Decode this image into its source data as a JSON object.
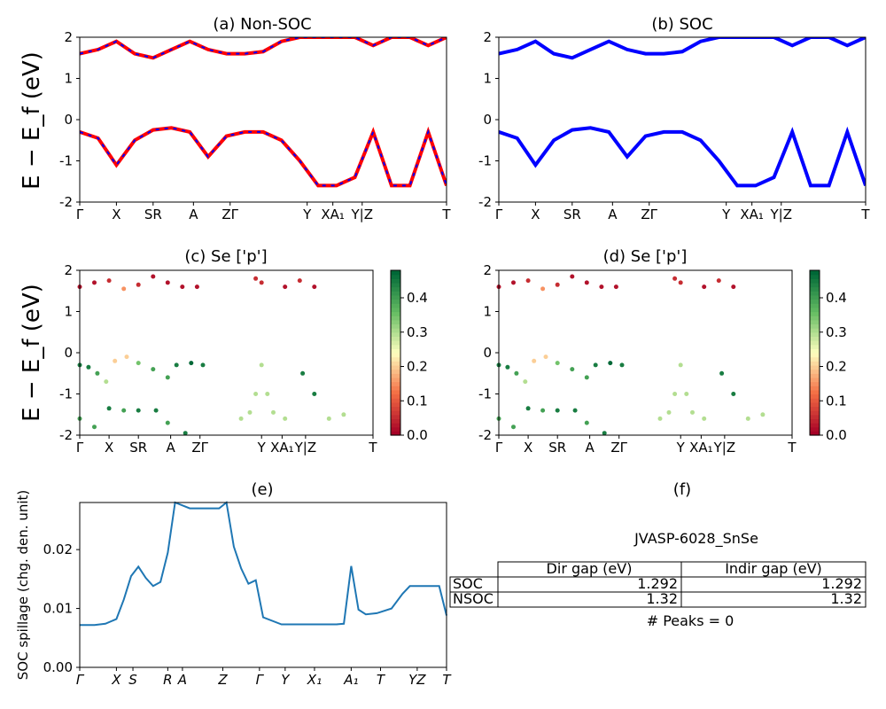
{
  "titles": {
    "a": "(a) Non-SOC",
    "b": "(b) SOC",
    "c": "(c)  Se ['p']",
    "d": "(d) Se ['p']",
    "e": "(e)",
    "f": "(f)"
  },
  "band_ylabel": "E − E_f (eV)",
  "spillage_ylabel": "SOC spillage (chg. den. unit)",
  "band_kpath_labels": [
    "Γ",
    "X",
    "SR",
    "A",
    "ZΓ",
    "Y",
    "XA₁",
    "Y|Z",
    "T"
  ],
  "spillage_kpath_labels": [
    "Γ",
    "X",
    "S",
    "R",
    "A",
    "Z",
    "Γ",
    "Y",
    "X₁",
    "A₁",
    "T",
    "YZ",
    "T"
  ],
  "colorbar_ticks": [
    "0.0",
    "0.1",
    "0.2",
    "0.3",
    "0.4"
  ],
  "colors": {
    "nonsoc_band": "#ff0000",
    "nonsoc_dash": "#0000ff",
    "soc_band": "#0000ff",
    "spillage_line": "#1f77b4"
  },
  "table": {
    "title": "JVASP-6028_SnSe",
    "col_headers": [
      "Dir gap (eV)",
      "Indir gap (eV)"
    ],
    "rows": [
      {
        "label": "SOC",
        "dir": "1.292",
        "indir": "1.292"
      },
      {
        "label": "NSOC",
        "dir": "1.32",
        "indir": "1.32"
      }
    ],
    "peaks": "# Peaks = 0"
  },
  "chart_data": [
    {
      "type": "line",
      "panel": "a",
      "title": "(a) Non-SOC",
      "ylabel": "E − E_f (eV)",
      "ylim": [
        -2,
        2
      ],
      "yticks": [
        -2,
        -1,
        0,
        1,
        2
      ],
      "xticks": [
        "Γ",
        "X",
        "SR",
        "A",
        "ZΓ",
        "Y",
        "XA₁",
        "Y|Z",
        "T"
      ],
      "series": [
        {
          "values_x": [
            0.0,
            0.05,
            0.1,
            0.15,
            0.2,
            0.25,
            0.3,
            0.35,
            0.4,
            0.45,
            0.5,
            0.55,
            0.6,
            0.65,
            0.7,
            0.75,
            0.8,
            0.85,
            0.9,
            0.95,
            1.0
          ],
          "values": [
            -0.3,
            -0.45,
            -1.1,
            -0.5,
            -0.25,
            -0.2,
            -0.3,
            -0.9,
            -0.4,
            -0.3,
            -0.3,
            -0.5,
            -1.0,
            -1.6,
            -1.6,
            -1.4,
            -0.3,
            -1.6,
            -1.6,
            -0.3,
            -1.6
          ]
        },
        {
          "values_x": [
            0.0,
            0.05,
            0.1,
            0.15,
            0.2,
            0.25,
            0.3,
            0.35,
            0.4,
            0.45,
            0.5,
            0.55,
            0.6,
            0.65,
            0.7,
            0.75,
            0.8,
            0.85,
            0.9,
            0.95,
            1.0
          ],
          "values": [
            1.6,
            1.7,
            1.9,
            1.6,
            1.5,
            1.7,
            1.9,
            1.7,
            1.6,
            1.6,
            1.65,
            1.9,
            2.0,
            2.0,
            2.0,
            2.0,
            1.8,
            2.0,
            2.0,
            1.8,
            2.0
          ]
        }
      ]
    },
    {
      "type": "line",
      "panel": "b",
      "title": "(b) SOC",
      "ylim": [
        -2,
        2
      ],
      "yticks": [
        -2,
        -1,
        0,
        1,
        2
      ],
      "xticks": [
        "Γ",
        "X",
        "SR",
        "A",
        "ZΓ",
        "Y",
        "XA₁",
        "Y|Z",
        "T"
      ],
      "series": [
        {
          "values_x": [
            0.0,
            0.05,
            0.1,
            0.15,
            0.2,
            0.25,
            0.3,
            0.35,
            0.4,
            0.45,
            0.5,
            0.55,
            0.6,
            0.65,
            0.7,
            0.75,
            0.8,
            0.85,
            0.9,
            0.95,
            1.0
          ],
          "values": [
            -0.3,
            -0.45,
            -1.1,
            -0.5,
            -0.25,
            -0.2,
            -0.3,
            -0.9,
            -0.4,
            -0.3,
            -0.3,
            -0.5,
            -1.0,
            -1.6,
            -1.6,
            -1.4,
            -0.3,
            -1.6,
            -1.6,
            -0.3,
            -1.6
          ]
        },
        {
          "values_x": [
            0.0,
            0.05,
            0.1,
            0.15,
            0.2,
            0.25,
            0.3,
            0.35,
            0.4,
            0.45,
            0.5,
            0.55,
            0.6,
            0.65,
            0.7,
            0.75,
            0.8,
            0.85,
            0.9,
            0.95,
            1.0
          ],
          "values": [
            1.6,
            1.7,
            1.9,
            1.6,
            1.5,
            1.7,
            1.9,
            1.7,
            1.6,
            1.6,
            1.65,
            1.9,
            2.0,
            2.0,
            2.0,
            2.0,
            1.8,
            2.0,
            2.0,
            1.8,
            2.0
          ]
        }
      ]
    },
    {
      "type": "scatter",
      "panel": "c",
      "title": "(c)  Se ['p']",
      "ylim": [
        -2,
        2
      ],
      "colorbar_range": [
        0.0,
        0.48
      ],
      "points": [
        [
          0.0,
          -0.3,
          0.45
        ],
        [
          0.03,
          -0.35,
          0.45
        ],
        [
          0.06,
          -0.5,
          0.4
        ],
        [
          0.09,
          -0.7,
          0.3
        ],
        [
          0.12,
          -0.2,
          0.2
        ],
        [
          0.16,
          -0.1,
          0.2
        ],
        [
          0.2,
          -0.25,
          0.35
        ],
        [
          0.25,
          -0.4,
          0.4
        ],
        [
          0.3,
          -0.6,
          0.4
        ],
        [
          0.33,
          -0.3,
          0.45
        ],
        [
          0.38,
          -0.25,
          0.48
        ],
        [
          0.42,
          -0.3,
          0.45
        ],
        [
          0.0,
          -1.6,
          0.4
        ],
        [
          0.05,
          -1.8,
          0.4
        ],
        [
          0.1,
          -1.35,
          0.45
        ],
        [
          0.15,
          -1.4,
          0.4
        ],
        [
          0.2,
          -1.4,
          0.45
        ],
        [
          0.26,
          -1.4,
          0.45
        ],
        [
          0.3,
          -1.7,
          0.4
        ],
        [
          0.36,
          -1.95,
          0.45
        ],
        [
          0.55,
          -1.6,
          0.3
        ],
        [
          0.58,
          -1.45,
          0.3
        ],
        [
          0.6,
          -1.0,
          0.3
        ],
        [
          0.62,
          -0.3,
          0.3
        ],
        [
          0.64,
          -1.0,
          0.3
        ],
        [
          0.66,
          -1.45,
          0.3
        ],
        [
          0.7,
          -1.6,
          0.3
        ],
        [
          0.76,
          -0.5,
          0.45
        ],
        [
          0.8,
          -1.0,
          0.45
        ],
        [
          0.85,
          -1.6,
          0.3
        ],
        [
          0.9,
          -1.5,
          0.3
        ],
        [
          0.0,
          1.6,
          0.02
        ],
        [
          0.05,
          1.7,
          0.02
        ],
        [
          0.1,
          1.75,
          0.05
        ],
        [
          0.15,
          1.55,
          0.15
        ],
        [
          0.2,
          1.65,
          0.05
        ],
        [
          0.25,
          1.85,
          0.02
        ],
        [
          0.3,
          1.7,
          0.02
        ],
        [
          0.35,
          1.6,
          0.02
        ],
        [
          0.4,
          1.6,
          0.02
        ],
        [
          0.6,
          1.8,
          0.05
        ],
        [
          0.62,
          1.7,
          0.05
        ],
        [
          0.7,
          1.6,
          0.02
        ],
        [
          0.75,
          1.75,
          0.05
        ],
        [
          0.8,
          1.6,
          0.02
        ]
      ]
    },
    {
      "type": "scatter",
      "panel": "d",
      "title": "(d) Se ['p']",
      "ylim": [
        -2,
        2
      ],
      "colorbar_range": [
        0.0,
        0.48
      ],
      "points": [
        [
          0.0,
          -0.3,
          0.45
        ],
        [
          0.03,
          -0.35,
          0.45
        ],
        [
          0.06,
          -0.5,
          0.4
        ],
        [
          0.09,
          -0.7,
          0.3
        ],
        [
          0.12,
          -0.2,
          0.2
        ],
        [
          0.16,
          -0.1,
          0.2
        ],
        [
          0.2,
          -0.25,
          0.35
        ],
        [
          0.25,
          -0.4,
          0.4
        ],
        [
          0.3,
          -0.6,
          0.4
        ],
        [
          0.33,
          -0.3,
          0.45
        ],
        [
          0.38,
          -0.25,
          0.48
        ],
        [
          0.42,
          -0.3,
          0.45
        ],
        [
          0.0,
          -1.6,
          0.4
        ],
        [
          0.05,
          -1.8,
          0.4
        ],
        [
          0.1,
          -1.35,
          0.45
        ],
        [
          0.15,
          -1.4,
          0.4
        ],
        [
          0.2,
          -1.4,
          0.45
        ],
        [
          0.26,
          -1.4,
          0.45
        ],
        [
          0.3,
          -1.7,
          0.4
        ],
        [
          0.36,
          -1.95,
          0.45
        ],
        [
          0.55,
          -1.6,
          0.3
        ],
        [
          0.58,
          -1.45,
          0.3
        ],
        [
          0.6,
          -1.0,
          0.3
        ],
        [
          0.62,
          -0.3,
          0.3
        ],
        [
          0.64,
          -1.0,
          0.3
        ],
        [
          0.66,
          -1.45,
          0.3
        ],
        [
          0.7,
          -1.6,
          0.3
        ],
        [
          0.76,
          -0.5,
          0.45
        ],
        [
          0.8,
          -1.0,
          0.45
        ],
        [
          0.85,
          -1.6,
          0.3
        ],
        [
          0.9,
          -1.5,
          0.3
        ],
        [
          0.0,
          1.6,
          0.02
        ],
        [
          0.05,
          1.7,
          0.02
        ],
        [
          0.1,
          1.75,
          0.05
        ],
        [
          0.15,
          1.55,
          0.15
        ],
        [
          0.2,
          1.65,
          0.05
        ],
        [
          0.25,
          1.85,
          0.02
        ],
        [
          0.3,
          1.7,
          0.02
        ],
        [
          0.35,
          1.6,
          0.02
        ],
        [
          0.4,
          1.6,
          0.02
        ],
        [
          0.6,
          1.8,
          0.05
        ],
        [
          0.62,
          1.7,
          0.05
        ],
        [
          0.7,
          1.6,
          0.02
        ],
        [
          0.75,
          1.75,
          0.05
        ],
        [
          0.8,
          1.6,
          0.02
        ]
      ]
    },
    {
      "type": "line",
      "panel": "e",
      "title": "(e)",
      "ylabel": "SOC spillage (chg. den. unit)",
      "ylim": [
        0.0,
        0.028
      ],
      "yticks": [
        0.0,
        0.01,
        0.02
      ],
      "xticks": [
        "Γ",
        "X",
        "S",
        "R",
        "A",
        "Z",
        "Γ",
        "Y",
        "X₁",
        "A₁",
        "T",
        "YZ",
        "T"
      ],
      "series": [
        {
          "name": "",
          "x": [
            0.0,
            0.04,
            0.07,
            0.1,
            0.12,
            0.14,
            0.16,
            0.18,
            0.2,
            0.22,
            0.24,
            0.26,
            0.3,
            0.34,
            0.38,
            0.4,
            0.42,
            0.44,
            0.46,
            0.48,
            0.5,
            0.55,
            0.6,
            0.65,
            0.7,
            0.72,
            0.74,
            0.76,
            0.78,
            0.81,
            0.85,
            0.88,
            0.9,
            0.94,
            0.98,
            1.0
          ],
          "y": [
            0.0072,
            0.0072,
            0.0074,
            0.0082,
            0.0115,
            0.0155,
            0.0171,
            0.0152,
            0.0138,
            0.0145,
            0.0195,
            0.028,
            0.027,
            0.027,
            0.027,
            0.0283,
            0.0205,
            0.0168,
            0.0142,
            0.0148,
            0.0085,
            0.0073,
            0.0073,
            0.0073,
            0.0073,
            0.0074,
            0.0172,
            0.0098,
            0.009,
            0.0092,
            0.01,
            0.0125,
            0.0138,
            0.0138,
            0.0138,
            0.0088
          ]
        }
      ]
    }
  ]
}
